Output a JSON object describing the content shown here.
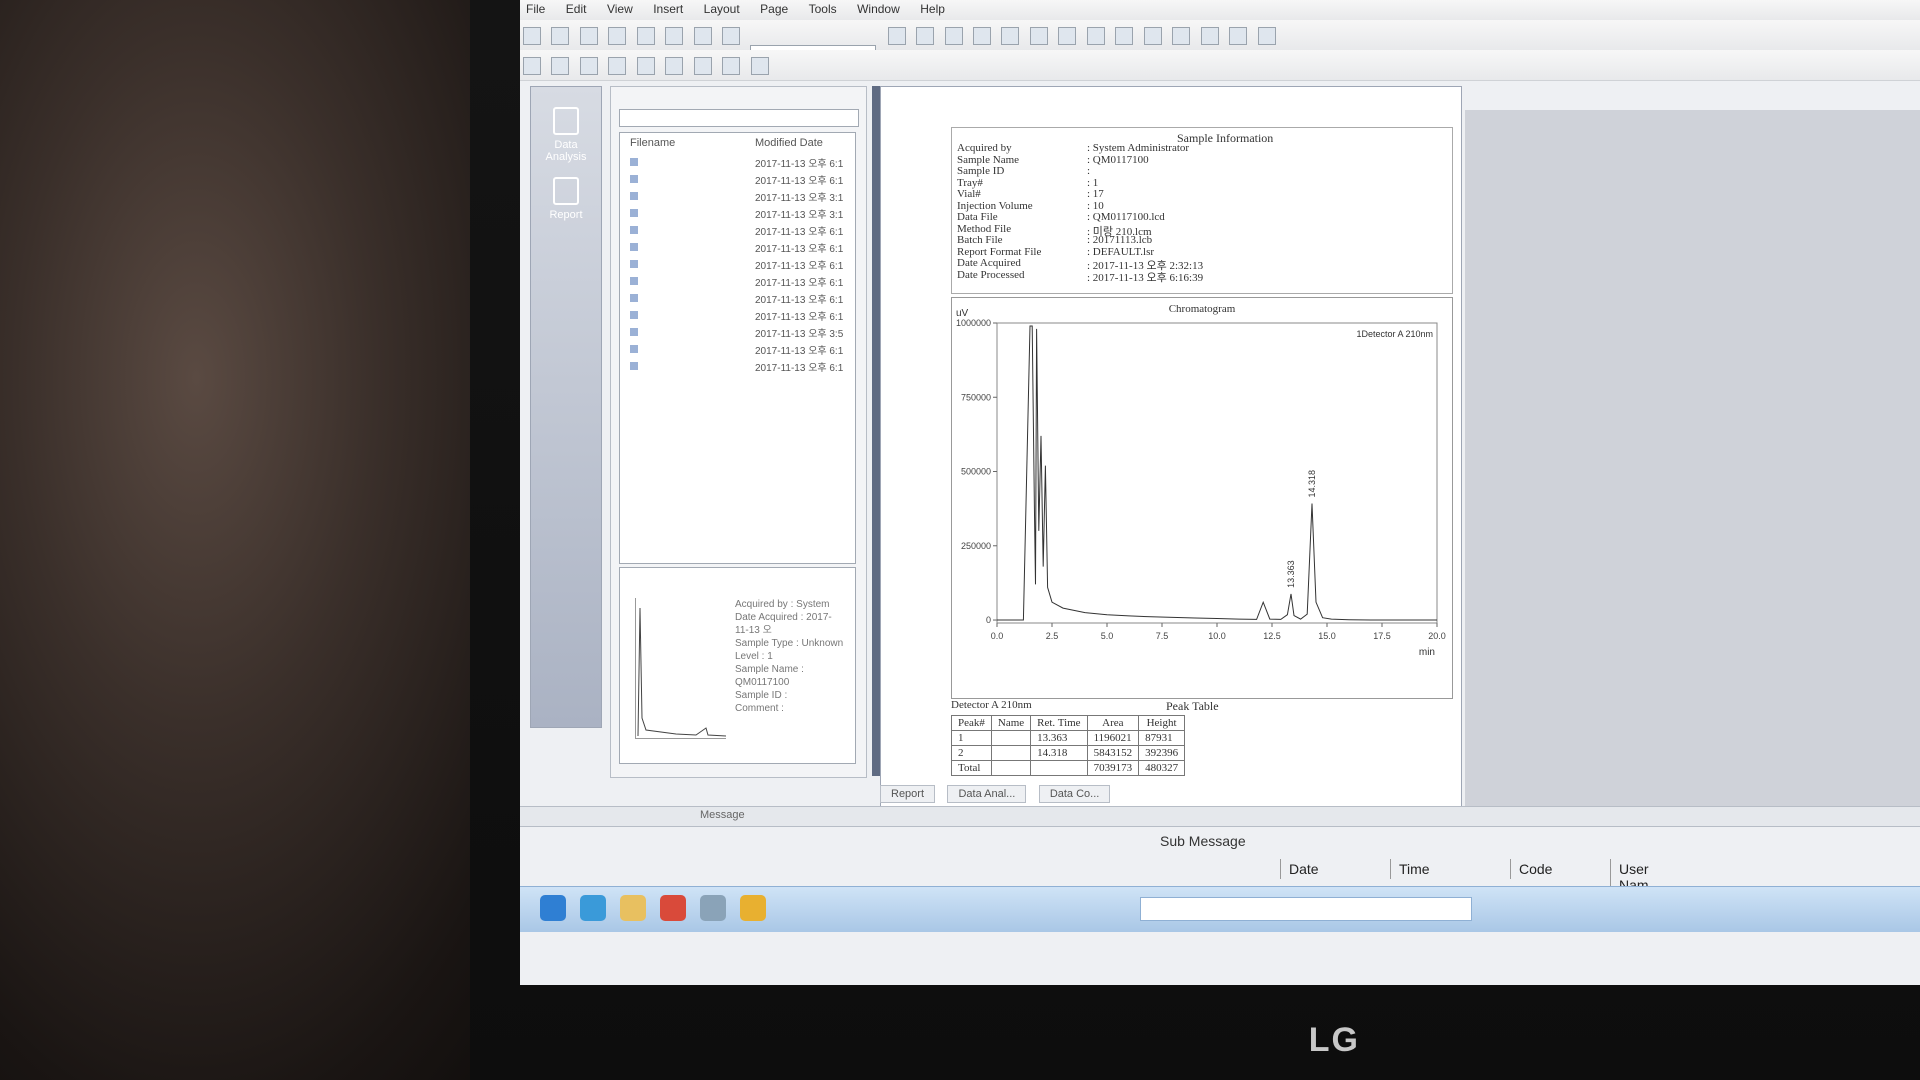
{
  "window": {
    "menu": [
      "File",
      "Edit",
      "View",
      "Insert",
      "Layout",
      "Page",
      "Tools",
      "Window",
      "Help"
    ],
    "toolbar_combo_value": "",
    "left_nav": [
      "Data Analysis",
      "Report"
    ]
  },
  "file_browser": {
    "folder_path": "",
    "columns": {
      "name": "Filename",
      "date": "Modified Date"
    },
    "files": [
      {
        "name": "",
        "date": "2017-11-13 오후 6:1"
      },
      {
        "name": "",
        "date": "2017-11-13 오후 6:1"
      },
      {
        "name": "",
        "date": "2017-11-13 오후 3:1"
      },
      {
        "name": "",
        "date": "2017-11-13 오후 3:1"
      },
      {
        "name": "",
        "date": "2017-11-13 오후 6:1"
      },
      {
        "name": "",
        "date": "2017-11-13 오후 6:1"
      },
      {
        "name": "",
        "date": "2017-11-13 오후 6:1"
      },
      {
        "name": "",
        "date": "2017-11-13 오후 6:1"
      },
      {
        "name": "",
        "date": "2017-11-13 오후 6:1"
      },
      {
        "name": "",
        "date": "2017-11-13 오후 6:1"
      },
      {
        "name": "",
        "date": "2017-11-13 오후 3:5"
      },
      {
        "name": "",
        "date": "2017-11-13 오후 6:1"
      },
      {
        "name": "",
        "date": "2017-11-13 오후 6:1"
      }
    ],
    "preview_info": [
      "Acquired by : System",
      "Date Acquired : 2017-11-13 오",
      "Sample Type : Unknown",
      "Level : 1",
      "Sample Name : QM0117100",
      "Sample ID :",
      "Comment :"
    ]
  },
  "report": {
    "sample_information": {
      "title": "Sample Information",
      "fields": [
        {
          "label": "Acquired by",
          "value": ": System Administrator"
        },
        {
          "label": "Sample Name",
          "value": ": QM0117100"
        },
        {
          "label": "Sample ID",
          "value": ":"
        },
        {
          "label": "Tray#",
          "value": ": 1"
        },
        {
          "label": "Vial#",
          "value": ": 17"
        },
        {
          "label": "Injection Volume",
          "value": ": 10"
        },
        {
          "label": "Data File",
          "value": ": QM0117100.lcd"
        },
        {
          "label": "Method File",
          "value": ": 미랑 210.lcm"
        },
        {
          "label": "Batch File",
          "value": ": 20171113.lcb"
        },
        {
          "label": "Report Format File",
          "value": ": DEFAULT.lsr"
        },
        {
          "label": "Date Acquired",
          "value": ": 2017-11-13 오후 2:32:13"
        },
        {
          "label": "Date Processed",
          "value": ": 2017-11-13 오후 6:16:39"
        }
      ]
    },
    "chromatogram_title": "Chromatogram",
    "peak_table": {
      "detector": "Detector A 210nm",
      "title": "Peak Table",
      "columns": [
        "Peak#",
        "Name",
        "Ret. Time",
        "Area",
        "Height"
      ],
      "rows": [
        [
          "1",
          "",
          "13.363",
          "1196021",
          "87931"
        ],
        [
          "2",
          "",
          "14.318",
          "5843152",
          "392396"
        ],
        [
          "Total",
          "",
          "",
          "7039173",
          "480327"
        ]
      ]
    },
    "tabs": [
      "Report",
      "Data Anal...",
      "Data Co..."
    ]
  },
  "messages": {
    "message_label": "Message",
    "sub_message_title": "Sub Message",
    "log_columns": [
      "Date",
      "Time",
      "Code",
      "User Nam"
    ]
  },
  "monitor": {
    "brand": "LG"
  },
  "chart_data": {
    "type": "line",
    "title": "Chromatogram",
    "ylabel": "uV",
    "xlabel": "min",
    "xlim": [
      0,
      20
    ],
    "ylim": [
      -10000,
      1000000
    ],
    "x_ticks": [
      "0.0",
      "2.5",
      "5.0",
      "7.5",
      "10.0",
      "12.5",
      "15.0",
      "17.5",
      "20.0"
    ],
    "y_ticks": [
      "0",
      "250000",
      "500000",
      "750000",
      "1000000"
    ],
    "series": [
      {
        "name": "1Detector A 210nm",
        "x": [
          0.0,
          0.4,
          0.8,
          1.2,
          1.5,
          1.6,
          1.7,
          1.75,
          1.8,
          1.9,
          2.0,
          2.1,
          2.2,
          2.3,
          2.5,
          3.0,
          4.0,
          5.0,
          6.0,
          7.0,
          8.0,
          9.0,
          10.0,
          11.0,
          11.8,
          12.1,
          12.4,
          12.9,
          13.2,
          13.363,
          13.5,
          13.8,
          14.1,
          14.318,
          14.5,
          14.8,
          15.2,
          16.0,
          17.0,
          18.0,
          19.0,
          20.0
        ],
        "y": [
          0,
          0,
          0,
          0,
          990000,
          990000,
          380000,
          120000,
          980000,
          300000,
          620000,
          180000,
          520000,
          110000,
          60000,
          40000,
          25000,
          18000,
          14000,
          11000,
          9000,
          7000,
          5000,
          3000,
          2000,
          60000,
          3000,
          2000,
          18000,
          87931,
          15000,
          3000,
          20000,
          392396,
          60000,
          8000,
          3000,
          1000,
          0,
          0,
          0,
          0
        ]
      }
    ],
    "peak_labels": [
      {
        "x": 13.363,
        "label": "13.363"
      },
      {
        "x": 14.318,
        "label": "14.318"
      }
    ],
    "grid": false
  }
}
